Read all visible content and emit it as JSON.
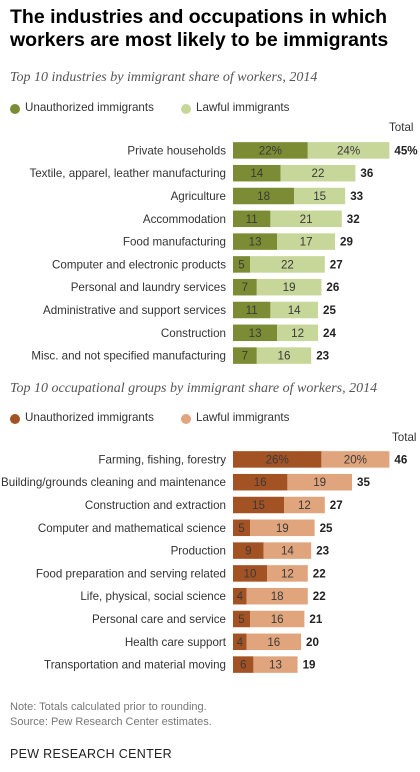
{
  "headline": "The industries and occupations in which workers are most likely to be immigrants",
  "chart_data": [
    {
      "type": "bar",
      "stacked": true,
      "orientation": "horizontal",
      "title": "Top 10 industries by immigrant share of workers, 2014",
      "total_label": "Total",
      "categories": [
        "Private households",
        "Textile, apparel, leather manufacturing",
        "Agriculture",
        "Accommodation",
        "Food manufacturing",
        "Computer and electronic products",
        "Personal and laundry services",
        "Administrative and support services",
        "Construction",
        "Misc. and not specified manufacturing"
      ],
      "series": [
        {
          "name": "Unauthorized immigrants",
          "color": "#7b8c34",
          "values": [
            22,
            14,
            18,
            11,
            13,
            5,
            7,
            11,
            13,
            7
          ],
          "labels": [
            "22%",
            "14",
            "18",
            "11",
            "13",
            "5",
            "7",
            "11",
            "13",
            "7"
          ]
        },
        {
          "name": "Lawful immigrants",
          "color": "#c7d79a",
          "values": [
            24,
            22,
            15,
            21,
            17,
            22,
            19,
            14,
            12,
            16
          ],
          "labels": [
            "24%",
            "22",
            "15",
            "21",
            "17",
            "22",
            "19",
            "14",
            "12",
            "16"
          ]
        }
      ],
      "totals": [
        45,
        36,
        33,
        32,
        29,
        27,
        26,
        25,
        24,
        23
      ],
      "total_labels": [
        "45%",
        "36",
        "33",
        "32",
        "29",
        "27",
        "26",
        "25",
        "24",
        "23"
      ]
    },
    {
      "type": "bar",
      "stacked": true,
      "orientation": "horizontal",
      "title": "Top 10 occupational groups by immigrant share of workers, 2014",
      "total_label": "Total",
      "categories": [
        "Farming, fishing, forestry",
        "Building/grounds cleaning and maintenance",
        "Construction and extraction",
        "Computer and mathematical science",
        "Production",
        "Food preparation and serving related",
        "Life, physical, social science",
        "Personal care and service",
        "Health care support",
        "Transportation and material moving"
      ],
      "series": [
        {
          "name": "Unauthorized immigrants",
          "color": "#a35224",
          "values": [
            26,
            16,
            15,
            5,
            9,
            10,
            4,
            5,
            4,
            6
          ],
          "labels": [
            "26%",
            "16",
            "15",
            "5",
            "9",
            "10",
            "4",
            "5",
            "4",
            "6"
          ]
        },
        {
          "name": "Lawful immigrants",
          "color": "#e1a57d",
          "values": [
            20,
            19,
            12,
            19,
            14,
            12,
            18,
            16,
            16,
            13
          ],
          "labels": [
            "20%",
            "19",
            "12",
            "19",
            "14",
            "12",
            "18",
            "16",
            "16",
            "13"
          ]
        }
      ],
      "totals": [
        46,
        35,
        27,
        25,
        23,
        22,
        22,
        21,
        20,
        19
      ],
      "total_labels": [
        "46",
        "35",
        "27",
        "25",
        "23",
        "22",
        "22",
        "21",
        "20",
        "19"
      ]
    }
  ],
  "notes": [
    "Note: Totals calculated prior to rounding.",
    "Source: Pew Research Center estimates."
  ],
  "brand": "PEW RESEARCH CENTER"
}
